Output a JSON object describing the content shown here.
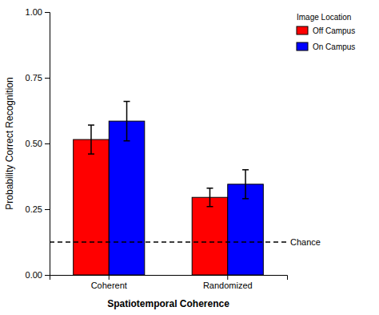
{
  "chart_data": {
    "type": "bar",
    "categories": [
      "Coherent",
      "Randomized"
    ],
    "series": [
      {
        "name": "Off Campus",
        "color": "#FF0000",
        "values": [
          0.515,
          0.295
        ],
        "errors": [
          0.055,
          0.035
        ]
      },
      {
        "name": "On Campus",
        "color": "#0000FF",
        "values": [
          0.585,
          0.345
        ],
        "errors": [
          0.075,
          0.055
        ]
      }
    ],
    "xlabel": "Spatiotemporal Coherence",
    "ylabel": "Probability Correct Recognition",
    "ylim": [
      0.0,
      1.0
    ],
    "yticks": [
      {
        "value": 0.0,
        "label": "0.00"
      },
      {
        "value": 0.25,
        "label": "0.25"
      },
      {
        "value": 0.5,
        "label": "0.50"
      },
      {
        "value": 0.75,
        "label": "0.75"
      },
      {
        "value": 1.0,
        "label": "1.00"
      }
    ],
    "legend_title": "Image Location",
    "legend": "upper right",
    "grid": false,
    "annotations": [
      {
        "type": "hline",
        "y": 0.125,
        "text": "Chance",
        "line_style": "dashed"
      }
    ]
  }
}
